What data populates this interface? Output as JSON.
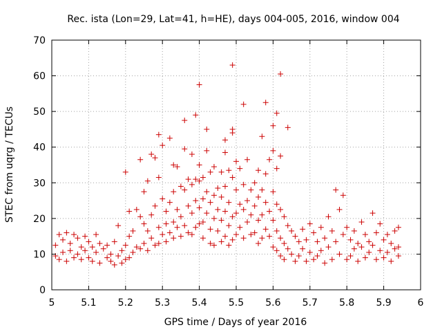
{
  "chart_data": {
    "type": "scatter",
    "title": "Rec. ista (Lon=29, Lat=41, h=HE), days 004-005, 2016, window 004",
    "xlabel": "GPS time / Days of year 2016",
    "ylabel": "STEC from uqrg / TECUs",
    "xlim": [
      5,
      6
    ],
    "ylim": [
      0,
      70
    ],
    "x_ticks": [
      "5",
      "5.1",
      "5.2",
      "5.3",
      "5.4",
      "5.5",
      "5.6",
      "5.7",
      "5.8",
      "5.9",
      "6"
    ],
    "y_ticks": [
      "0",
      "10",
      "20",
      "30",
      "40",
      "50",
      "60",
      "70"
    ],
    "grid": true,
    "marker": "plus",
    "marker_color": "#cc0000",
    "series": [
      {
        "points": [
          [
            5.01,
            12.5
          ],
          [
            5.01,
            9.5
          ],
          [
            5.02,
            15.5
          ],
          [
            5.02,
            8.5
          ],
          [
            5.03,
            14
          ],
          [
            5.03,
            10.5
          ],
          [
            5.04,
            16
          ],
          [
            5.04,
            8
          ],
          [
            5.05,
            13
          ],
          [
            5.05,
            11
          ],
          [
            5.06,
            15.5
          ],
          [
            5.06,
            9
          ],
          [
            5.07,
            14.5
          ],
          [
            5.07,
            10
          ],
          [
            5.08,
            12
          ],
          [
            5.08,
            8.5
          ],
          [
            5.09,
            15
          ],
          [
            5.09,
            11
          ],
          [
            5.1,
            13.5
          ],
          [
            5.1,
            9
          ],
          [
            5.11,
            12
          ],
          [
            5.11,
            8
          ],
          [
            5.12,
            15.5
          ],
          [
            5.12,
            10.5
          ],
          [
            5.13,
            13
          ],
          [
            5.13,
            7.5
          ],
          [
            5.14,
            11.5
          ],
          [
            5.15,
            9
          ],
          [
            5.15,
            12.5
          ],
          [
            5.16,
            8
          ],
          [
            5.16,
            10
          ],
          [
            5.17,
            13.5
          ],
          [
            5.17,
            7
          ],
          [
            5.18,
            18
          ],
          [
            5.18,
            9.5
          ],
          [
            5.19,
            11
          ],
          [
            5.19,
            7.5
          ],
          [
            5.2,
            33
          ],
          [
            5.2,
            12.5
          ],
          [
            5.2,
            8.5
          ],
          [
            5.21,
            22
          ],
          [
            5.21,
            15
          ],
          [
            5.21,
            9
          ],
          [
            5.22,
            16.5
          ],
          [
            5.22,
            10.5
          ],
          [
            5.23,
            22.5
          ],
          [
            5.23,
            12
          ],
          [
            5.24,
            36.5
          ],
          [
            5.24,
            20.5
          ],
          [
            5.24,
            11.5
          ],
          [
            5.25,
            27.5
          ],
          [
            5.25,
            18.5
          ],
          [
            5.25,
            13
          ],
          [
            5.26,
            30.5
          ],
          [
            5.26,
            16.5
          ],
          [
            5.26,
            11
          ],
          [
            5.27,
            38
          ],
          [
            5.27,
            21
          ],
          [
            5.27,
            14.5
          ],
          [
            5.28,
            37
          ],
          [
            5.28,
            23.5
          ],
          [
            5.28,
            12.5
          ],
          [
            5.29,
            43.5
          ],
          [
            5.29,
            31.5
          ],
          [
            5.29,
            17.5
          ],
          [
            5.29,
            13
          ],
          [
            5.3,
            40.5
          ],
          [
            5.3,
            25.5
          ],
          [
            5.3,
            15.5
          ],
          [
            5.31,
            22
          ],
          [
            5.31,
            18.5
          ],
          [
            5.31,
            13.5
          ],
          [
            5.32,
            42.5
          ],
          [
            5.32,
            24.5
          ],
          [
            5.32,
            16
          ],
          [
            5.33,
            35
          ],
          [
            5.33,
            27.5
          ],
          [
            5.33,
            19
          ],
          [
            5.33,
            14.5
          ],
          [
            5.34,
            34.5
          ],
          [
            5.34,
            22.5
          ],
          [
            5.34,
            17.5
          ],
          [
            5.35,
            29
          ],
          [
            5.35,
            20.5
          ],
          [
            5.35,
            15
          ],
          [
            5.36,
            47.5
          ],
          [
            5.36,
            39.5
          ],
          [
            5.36,
            28
          ],
          [
            5.36,
            18
          ],
          [
            5.37,
            31
          ],
          [
            5.37,
            23.5
          ],
          [
            5.37,
            16
          ],
          [
            5.38,
            38
          ],
          [
            5.38,
            29.5
          ],
          [
            5.38,
            21.5
          ],
          [
            5.38,
            15.5
          ],
          [
            5.39,
            49
          ],
          [
            5.39,
            31
          ],
          [
            5.39,
            25
          ],
          [
            5.39,
            17.5
          ],
          [
            5.4,
            57.5
          ],
          [
            5.4,
            35
          ],
          [
            5.4,
            30.5
          ],
          [
            5.4,
            23
          ],
          [
            5.4,
            18.5
          ],
          [
            5.41,
            31.5
          ],
          [
            5.41,
            25.5
          ],
          [
            5.41,
            19
          ],
          [
            5.41,
            14.5
          ],
          [
            5.42,
            45
          ],
          [
            5.42,
            39
          ],
          [
            5.42,
            27.5
          ],
          [
            5.42,
            21.5
          ],
          [
            5.43,
            33
          ],
          [
            5.43,
            24.5
          ],
          [
            5.43,
            17
          ],
          [
            5.43,
            13
          ],
          [
            5.44,
            34.5
          ],
          [
            5.44,
            26.5
          ],
          [
            5.44,
            20
          ],
          [
            5.44,
            12.5
          ],
          [
            5.45,
            28.5
          ],
          [
            5.45,
            22.5
          ],
          [
            5.45,
            16.5
          ],
          [
            5.46,
            33
          ],
          [
            5.46,
            26
          ],
          [
            5.46,
            19.5
          ],
          [
            5.46,
            13.5
          ],
          [
            5.47,
            42
          ],
          [
            5.47,
            38.5
          ],
          [
            5.47,
            29
          ],
          [
            5.47,
            22
          ],
          [
            5.47,
            15
          ],
          [
            5.48,
            33.5
          ],
          [
            5.48,
            24.5
          ],
          [
            5.48,
            18
          ],
          [
            5.48,
            12.5
          ],
          [
            5.49,
            63
          ],
          [
            5.49,
            45
          ],
          [
            5.49,
            44
          ],
          [
            5.49,
            31.5
          ],
          [
            5.49,
            20.5
          ],
          [
            5.49,
            14
          ],
          [
            5.5,
            36
          ],
          [
            5.5,
            28
          ],
          [
            5.5,
            21.5
          ],
          [
            5.5,
            15.5
          ],
          [
            5.51,
            34
          ],
          [
            5.51,
            24
          ],
          [
            5.51,
            17.5
          ],
          [
            5.52,
            52
          ],
          [
            5.52,
            29.5
          ],
          [
            5.52,
            22.5
          ],
          [
            5.52,
            14.5
          ],
          [
            5.53,
            36.5
          ],
          [
            5.53,
            25
          ],
          [
            5.53,
            19
          ],
          [
            5.54,
            28
          ],
          [
            5.54,
            21
          ],
          [
            5.54,
            15.5
          ],
          [
            5.55,
            30
          ],
          [
            5.55,
            23.5
          ],
          [
            5.55,
            16
          ],
          [
            5.56,
            33.5
          ],
          [
            5.56,
            26
          ],
          [
            5.56,
            19.5
          ],
          [
            5.56,
            13
          ],
          [
            5.57,
            43
          ],
          [
            5.57,
            28
          ],
          [
            5.57,
            21
          ],
          [
            5.57,
            14.5
          ],
          [
            5.58,
            52.5
          ],
          [
            5.58,
            32.5
          ],
          [
            5.58,
            24.5
          ],
          [
            5.58,
            17
          ],
          [
            5.59,
            36.5
          ],
          [
            5.59,
            22
          ],
          [
            5.59,
            15
          ],
          [
            5.6,
            46
          ],
          [
            5.6,
            39
          ],
          [
            5.6,
            27.5
          ],
          [
            5.6,
            19.5
          ],
          [
            5.6,
            12
          ],
          [
            5.61,
            49.5
          ],
          [
            5.61,
            34
          ],
          [
            5.61,
            24
          ],
          [
            5.61,
            16.5
          ],
          [
            5.61,
            11
          ],
          [
            5.62,
            60.5
          ],
          [
            5.62,
            37.5
          ],
          [
            5.62,
            22.5
          ],
          [
            5.62,
            14.5
          ],
          [
            5.62,
            9.5
          ],
          [
            5.63,
            20.5
          ],
          [
            5.63,
            13
          ],
          [
            5.63,
            8.5
          ],
          [
            5.64,
            45.5
          ],
          [
            5.64,
            18
          ],
          [
            5.64,
            11.5
          ],
          [
            5.65,
            16.5
          ],
          [
            5.65,
            10
          ],
          [
            5.66,
            15
          ],
          [
            5.66,
            8
          ],
          [
            5.67,
            13.5
          ],
          [
            5.67,
            9.5
          ],
          [
            5.68,
            17
          ],
          [
            5.68,
            11.5
          ],
          [
            5.69,
            14
          ],
          [
            5.69,
            8
          ],
          [
            5.7,
            18.5
          ],
          [
            5.7,
            10.5
          ],
          [
            5.71,
            16
          ],
          [
            5.71,
            8.5
          ],
          [
            5.72,
            13.5
          ],
          [
            5.72,
            9.5
          ],
          [
            5.73,
            17.5
          ],
          [
            5.73,
            11
          ],
          [
            5.74,
            14.5
          ],
          [
            5.74,
            7.5
          ],
          [
            5.75,
            20.5
          ],
          [
            5.75,
            12
          ],
          [
            5.76,
            16.5
          ],
          [
            5.76,
            8.5
          ],
          [
            5.77,
            28
          ],
          [
            5.77,
            13.5
          ],
          [
            5.78,
            22.5
          ],
          [
            5.78,
            10
          ],
          [
            5.79,
            26.5
          ],
          [
            5.79,
            15.5
          ],
          [
            5.8,
            17.5
          ],
          [
            5.8,
            8.5
          ],
          [
            5.81,
            14
          ],
          [
            5.81,
            9.5
          ],
          [
            5.82,
            16.5
          ],
          [
            5.82,
            11.5
          ],
          [
            5.83,
            13
          ],
          [
            5.83,
            8
          ],
          [
            5.84,
            19
          ],
          [
            5.84,
            12
          ],
          [
            5.85,
            15.5
          ],
          [
            5.85,
            9
          ],
          [
            5.86,
            13.5
          ],
          [
            5.86,
            10.5
          ],
          [
            5.87,
            21.5
          ],
          [
            5.87,
            12.5
          ],
          [
            5.88,
            16
          ],
          [
            5.88,
            8.5
          ],
          [
            5.89,
            18.5
          ],
          [
            5.89,
            11
          ],
          [
            5.9,
            14
          ],
          [
            5.9,
            9
          ],
          [
            5.91,
            15.5
          ],
          [
            5.91,
            10.5
          ],
          [
            5.92,
            13
          ],
          [
            5.92,
            8
          ],
          [
            5.93,
            16.5
          ],
          [
            5.93,
            11.5
          ],
          [
            5.94,
            17.5
          ],
          [
            5.94,
            12
          ],
          [
            5.94,
            9.5
          ]
        ]
      }
    ]
  }
}
